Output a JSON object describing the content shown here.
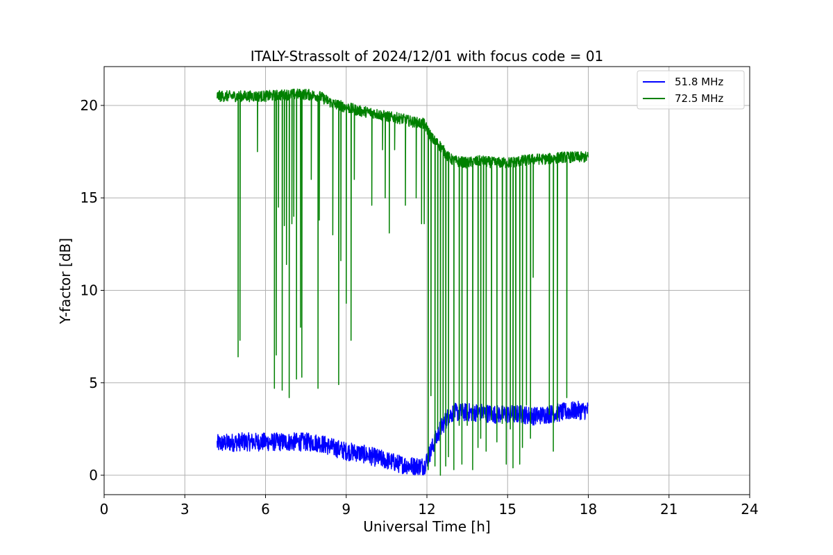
{
  "chart_data": {
    "type": "line",
    "title": "ITALY-Strassolt of 2024/12/01 with focus code = 01",
    "xlabel": "Universal Time [h]",
    "ylabel": "Y-factor [dB]",
    "xlim": [
      0,
      24
    ],
    "ylim": [
      -1.05,
      22.1
    ],
    "xticks": [
      0,
      3,
      6,
      9,
      12,
      15,
      18,
      21,
      24
    ],
    "yticks": [
      0,
      5,
      10,
      15,
      20
    ],
    "xtick_labels": [
      "0",
      "3",
      "6",
      "9",
      "12",
      "15",
      "18",
      "21",
      "24"
    ],
    "ytick_labels": [
      "0",
      "5",
      "10",
      "15",
      "20"
    ],
    "grid": true,
    "legend_position": "top-right",
    "series": [
      {
        "name": "51.8 MHz",
        "color": "#0000ff",
        "x": [
          4.2,
          5.0,
          6.0,
          7.0,
          7.5,
          8.0,
          8.5,
          9.0,
          9.5,
          10.0,
          10.5,
          11.0,
          11.5,
          11.9,
          12.2,
          12.5,
          12.8,
          13.0,
          13.5,
          14.0,
          14.5,
          15.0,
          15.5,
          16.0,
          16.5,
          17.0,
          17.5,
          18.0
        ],
        "values": [
          1.7,
          1.8,
          1.8,
          1.8,
          1.8,
          1.75,
          1.5,
          1.3,
          1.2,
          1.0,
          0.8,
          0.6,
          0.5,
          0.5,
          1.5,
          2.5,
          3.2,
          3.4,
          3.4,
          3.4,
          3.3,
          3.3,
          3.3,
          3.2,
          3.3,
          3.4,
          3.5,
          3.5
        ],
        "spread": 0.5
      },
      {
        "name": "72.5 MHz",
        "color": "#008000",
        "x": [
          4.2,
          5.0,
          6.0,
          7.0,
          7.5,
          8.0,
          8.5,
          9.0,
          9.5,
          10.0,
          10.5,
          11.0,
          11.5,
          11.9,
          12.2,
          12.5,
          12.8,
          13.0,
          13.5,
          14.0,
          14.5,
          15.0,
          15.5,
          16.0,
          16.5,
          17.0,
          17.5,
          18.0
        ],
        "values": [
          20.5,
          20.5,
          20.5,
          20.6,
          20.6,
          20.5,
          20.1,
          19.9,
          19.7,
          19.6,
          19.4,
          19.3,
          19.1,
          19.0,
          18.2,
          17.8,
          17.2,
          17.0,
          16.9,
          17.0,
          16.9,
          16.9,
          17.0,
          17.1,
          17.1,
          17.2,
          17.2,
          17.2
        ],
        "spread": 0.3,
        "dips": [
          [
            4.98,
            6.4
          ],
          [
            5.05,
            7.3
          ],
          [
            5.7,
            17.5
          ],
          [
            6.33,
            4.7
          ],
          [
            6.4,
            6.5
          ],
          [
            6.48,
            14.5
          ],
          [
            6.62,
            4.6
          ],
          [
            6.7,
            13.5
          ],
          [
            6.78,
            11.4
          ],
          [
            6.88,
            4.2
          ],
          [
            6.98,
            13.6
          ],
          [
            7.05,
            14.0
          ],
          [
            7.15,
            5.2
          ],
          [
            7.3,
            8.0
          ],
          [
            7.35,
            5.3
          ],
          [
            7.7,
            16.0
          ],
          [
            7.95,
            4.7
          ],
          [
            8.0,
            13.8
          ],
          [
            8.5,
            13.0
          ],
          [
            8.72,
            4.9
          ],
          [
            8.8,
            11.6
          ],
          [
            9.0,
            9.3
          ],
          [
            9.18,
            7.3
          ],
          [
            9.3,
            16.0
          ],
          [
            9.95,
            14.6
          ],
          [
            10.35,
            17.6
          ],
          [
            10.45,
            15.0
          ],
          [
            10.6,
            13.1
          ],
          [
            10.8,
            17.6
          ],
          [
            11.2,
            14.6
          ],
          [
            11.6,
            15.0
          ],
          [
            11.8,
            13.6
          ],
          [
            11.9,
            13.6
          ],
          [
            12.05,
            0.3
          ],
          [
            12.15,
            4.3
          ],
          [
            12.3,
            0.5
          ],
          [
            12.4,
            2.5
          ],
          [
            12.5,
            0.0
          ],
          [
            12.6,
            3.0
          ],
          [
            12.7,
            0.5
          ],
          [
            12.8,
            1.0
          ],
          [
            13.0,
            0.3
          ],
          [
            13.2,
            2.7
          ],
          [
            13.3,
            0.6
          ],
          [
            13.5,
            2.7
          ],
          [
            13.7,
            0.3
          ],
          [
            13.9,
            1.5
          ],
          [
            14.0,
            2.0
          ],
          [
            14.1,
            3.1
          ],
          [
            14.2,
            1.3
          ],
          [
            14.4,
            3.0
          ],
          [
            14.6,
            1.8
          ],
          [
            14.8,
            2.8
          ],
          [
            14.95,
            0.6
          ],
          [
            15.1,
            2.5
          ],
          [
            15.2,
            0.4
          ],
          [
            15.3,
            3.0
          ],
          [
            15.45,
            0.6
          ],
          [
            15.55,
            1.5
          ],
          [
            15.7,
            3.8
          ],
          [
            15.85,
            2.0
          ],
          [
            15.95,
            10.7
          ],
          [
            16.55,
            3.3
          ],
          [
            16.7,
            1.3
          ],
          [
            16.85,
            3.0
          ],
          [
            17.2,
            4.2
          ]
        ]
      }
    ]
  }
}
